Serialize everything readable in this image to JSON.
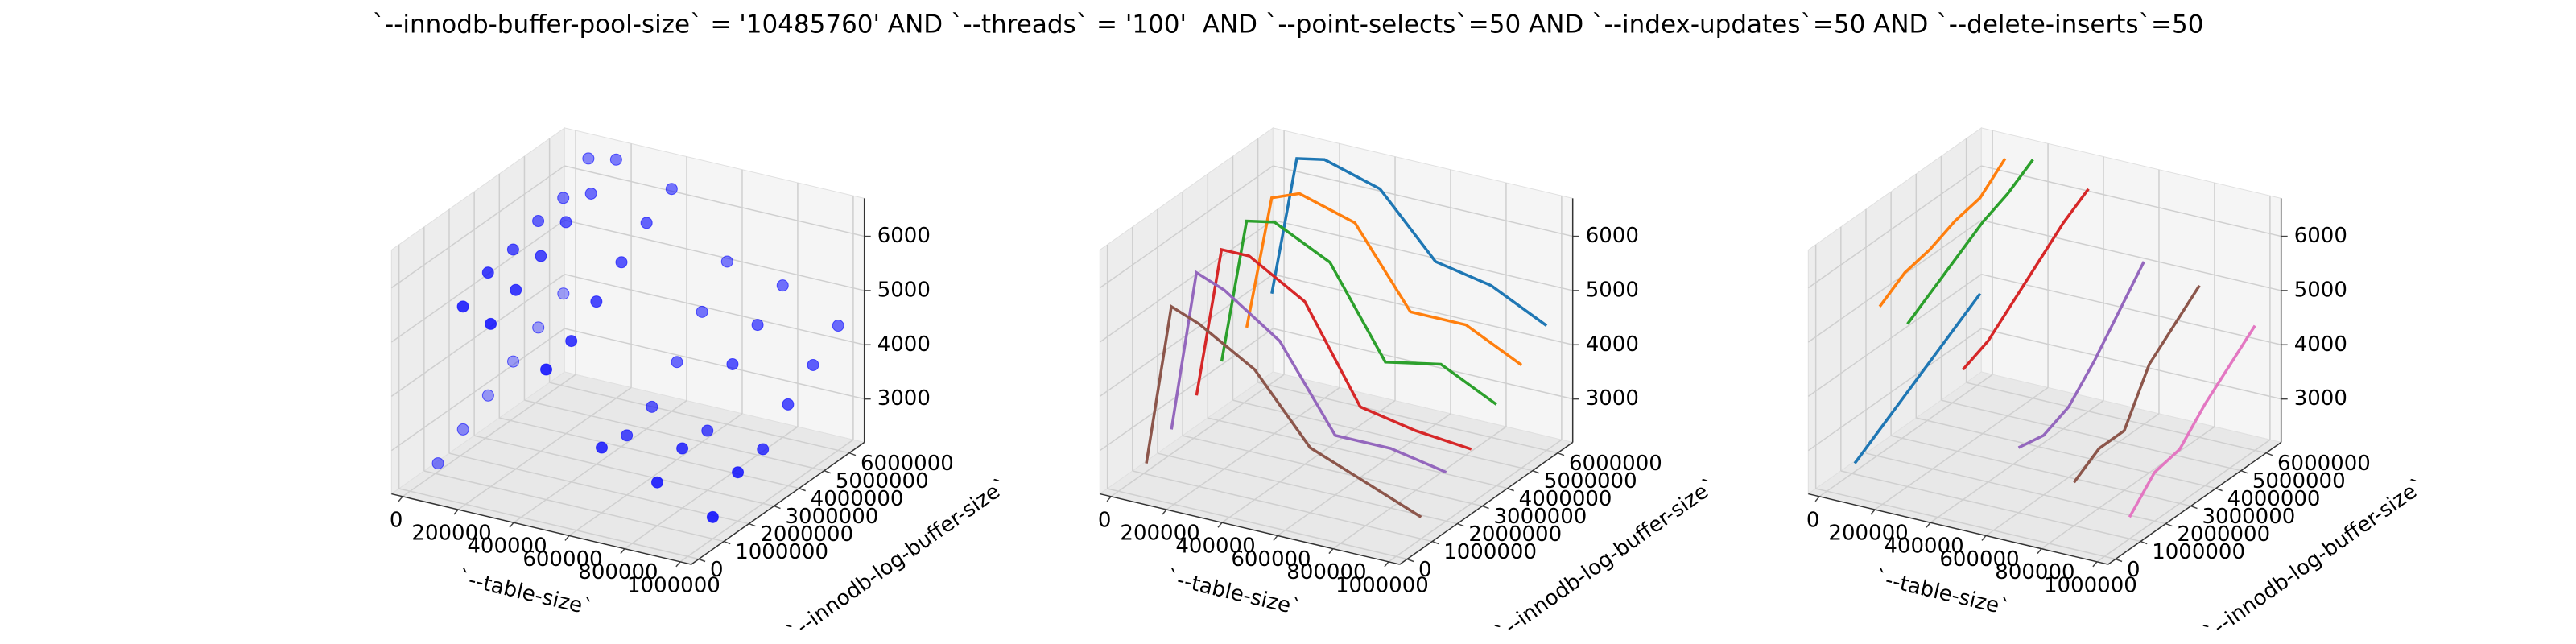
{
  "title": "`--innodb-buffer-pool-size` = '10485760' AND `--threads` = '100'  AND `--point-selects`=50 AND `--index-updates`=50 AND `--delete-inserts`=50",
  "chart_data": [
    {
      "type": "scatter3d",
      "xlabel": "`--table-size`",
      "ylabel": "`--innodb-log-buffer-size`",
      "xlim": [
        -40000,
        1040000
      ],
      "ylim": [
        -300000,
        6600000
      ],
      "zlim": [
        2200,
        6700
      ],
      "xticks": [
        0,
        200000,
        400000,
        600000,
        800000,
        1000000
      ],
      "yticks": [
        0,
        1000000,
        2000000,
        3000000,
        4000000,
        5000000,
        6000000
      ],
      "zticks": [
        3000,
        4000,
        5000,
        6000
      ],
      "color": "#0000ff",
      "x": [
        10000,
        100000,
        200000,
        400000,
        600000,
        800000,
        1000000,
        10000,
        100000,
        200000,
        400000,
        600000,
        800000,
        1000000,
        10000,
        100000,
        200000,
        400000,
        600000,
        800000,
        1000000,
        10000,
        100000,
        200000,
        400000,
        600000,
        800000,
        1000000,
        10000,
        100000,
        200000,
        400000,
        600000,
        800000,
        1000000,
        10000,
        100000,
        200000,
        400000,
        600000,
        800000,
        1000000
      ],
      "y": [
        1000000,
        1000000,
        1000000,
        1000000,
        1000000,
        1000000,
        1000000,
        2000000,
        2000000,
        2000000,
        2000000,
        2000000,
        2000000,
        2000000,
        3000000,
        3000000,
        3000000,
        3000000,
        3000000,
        3000000,
        3000000,
        4000000,
        4000000,
        4000000,
        4000000,
        4000000,
        4000000,
        4000000,
        5000000,
        5000000,
        5000000,
        5000000,
        5000000,
        5000000,
        5000000,
        6000000,
        6000000,
        6000000,
        6000000,
        6000000,
        6000000,
        6000000
      ],
      "z": [
        2400,
        5400,
        5200,
        4600,
        3400,
        3000,
        2600,
        2700,
        5700,
        5500,
        4800,
        3300,
        3300,
        3100,
        3000,
        5800,
        5800,
        5200,
        3500,
        3300,
        3200,
        3300,
        6000,
        6100,
        5600,
        4000,
        4200,
        3700,
        3600,
        6100,
        6300,
        6000,
        4600,
        4600,
        4100,
        3900,
        6500,
        6600,
        6300,
        5200,
        5000,
        4500
      ]
    },
    {
      "type": "line3d",
      "xlabel": "`--table-size`",
      "ylabel": "`--innodb-log-buffer-size`",
      "xlim": [
        -40000,
        1040000
      ],
      "ylim": [
        -300000,
        6600000
      ],
      "zlim": [
        2200,
        6700
      ],
      "xticks": [
        0,
        200000,
        400000,
        600000,
        800000,
        1000000
      ],
      "yticks": [
        0,
        1000000,
        2000000,
        3000000,
        4000000,
        5000000,
        6000000
      ],
      "zticks": [
        3000,
        4000,
        5000,
        6000
      ],
      "series": [
        {
          "color": "#1f77b4",
          "x": [
            10000,
            100000,
            200000,
            400000,
            600000,
            800000,
            1000000
          ],
          "y": [
            6000000,
            6000000,
            6000000,
            6000000,
            6000000,
            6000000,
            6000000
          ],
          "z": [
            3900,
            6500,
            6600,
            6300,
            5200,
            5000,
            4500
          ]
        },
        {
          "color": "#ff7f0e",
          "x": [
            10000,
            100000,
            200000,
            400000,
            600000,
            800000,
            1000000
          ],
          "y": [
            5000000,
            5000000,
            5000000,
            5000000,
            5000000,
            5000000,
            5000000
          ],
          "z": [
            3600,
            6100,
            6300,
            6000,
            4600,
            4600,
            4100
          ]
        },
        {
          "color": "#2ca02c",
          "x": [
            10000,
            100000,
            200000,
            400000,
            600000,
            800000,
            1000000
          ],
          "y": [
            4000000,
            4000000,
            4000000,
            4000000,
            4000000,
            4000000,
            4000000
          ],
          "z": [
            3300,
            6000,
            6100,
            5600,
            4000,
            4200,
            3700
          ]
        },
        {
          "color": "#d62728",
          "x": [
            10000,
            100000,
            200000,
            400000,
            600000,
            800000,
            1000000
          ],
          "y": [
            3000000,
            3000000,
            3000000,
            3000000,
            3000000,
            3000000,
            3000000
          ],
          "z": [
            3000,
            5800,
            5800,
            5200,
            3500,
            3300,
            3200
          ]
        },
        {
          "color": "#9467bd",
          "x": [
            10000,
            100000,
            200000,
            400000,
            600000,
            800000,
            1000000
          ],
          "y": [
            2000000,
            2000000,
            2000000,
            2000000,
            2000000,
            2000000,
            2000000
          ],
          "z": [
            2700,
            5700,
            5500,
            4800,
            3300,
            3300,
            3100
          ]
        },
        {
          "color": "#8c564b",
          "x": [
            10000,
            100000,
            200000,
            400000,
            600000,
            800000,
            1000000
          ],
          "y": [
            1000000,
            1000000,
            1000000,
            1000000,
            1000000,
            1000000,
            1000000
          ],
          "z": [
            2400,
            5400,
            5200,
            4600,
            3400,
            3000,
            2600
          ]
        }
      ]
    },
    {
      "type": "line3d",
      "xlabel": "`--table-size`",
      "ylabel": "`--innodb-log-buffer-size`",
      "xlim": [
        -40000,
        1040000
      ],
      "ylim": [
        -300000,
        6600000
      ],
      "zlim": [
        2200,
        6700
      ],
      "xticks": [
        0,
        200000,
        400000,
        600000,
        800000,
        1000000
      ],
      "yticks": [
        0,
        1000000,
        2000000,
        3000000,
        4000000,
        5000000,
        6000000
      ],
      "zticks": [
        3000,
        4000,
        5000,
        6000
      ],
      "series": [
        {
          "color": "#1f77b4",
          "x": [
            10000,
            10000,
            10000,
            10000,
            10000,
            10000
          ],
          "y": [
            1000000,
            2000000,
            3000000,
            4000000,
            5000000,
            6000000
          ],
          "z": [
            2400,
            2700,
            3000,
            3300,
            3600,
            3900
          ]
        },
        {
          "color": "#ff7f0e",
          "x": [
            100000,
            100000,
            100000,
            100000,
            100000,
            100000
          ],
          "y": [
            1000000,
            2000000,
            3000000,
            4000000,
            5000000,
            6000000
          ],
          "z": [
            5400,
            5700,
            5800,
            6000,
            6100,
            6500
          ]
        },
        {
          "color": "#2ca02c",
          "x": [
            200000,
            200000,
            200000,
            200000,
            200000,
            200000
          ],
          "y": [
            1000000,
            2000000,
            3000000,
            4000000,
            5000000,
            6000000
          ],
          "z": [
            5200,
            5500,
            5800,
            6100,
            6300,
            6600
          ]
        },
        {
          "color": "#d62728",
          "x": [
            400000,
            400000,
            400000,
            400000,
            400000,
            400000
          ],
          "y": [
            1000000,
            2000000,
            3000000,
            4000000,
            5000000,
            6000000
          ],
          "z": [
            4600,
            4800,
            5200,
            5600,
            6000,
            6300
          ]
        },
        {
          "color": "#9467bd",
          "x": [
            600000,
            600000,
            600000,
            600000,
            600000,
            600000
          ],
          "y": [
            1000000,
            2000000,
            3000000,
            4000000,
            5000000,
            6000000
          ],
          "z": [
            3400,
            3300,
            3500,
            4000,
            4600,
            5200
          ]
        },
        {
          "color": "#8c564b",
          "x": [
            800000,
            800000,
            800000,
            800000,
            800000,
            800000
          ],
          "y": [
            1000000,
            2000000,
            3000000,
            4000000,
            5000000,
            6000000
          ],
          "z": [
            3000,
            3300,
            3300,
            4200,
            4600,
            5000
          ]
        },
        {
          "color": "#e377c2",
          "x": [
            1000000,
            1000000,
            1000000,
            1000000,
            1000000,
            1000000
          ],
          "y": [
            1000000,
            2000000,
            3000000,
            4000000,
            5000000,
            6000000
          ],
          "z": [
            2600,
            3100,
            3200,
            3700,
            4100,
            4500
          ]
        }
      ]
    }
  ]
}
